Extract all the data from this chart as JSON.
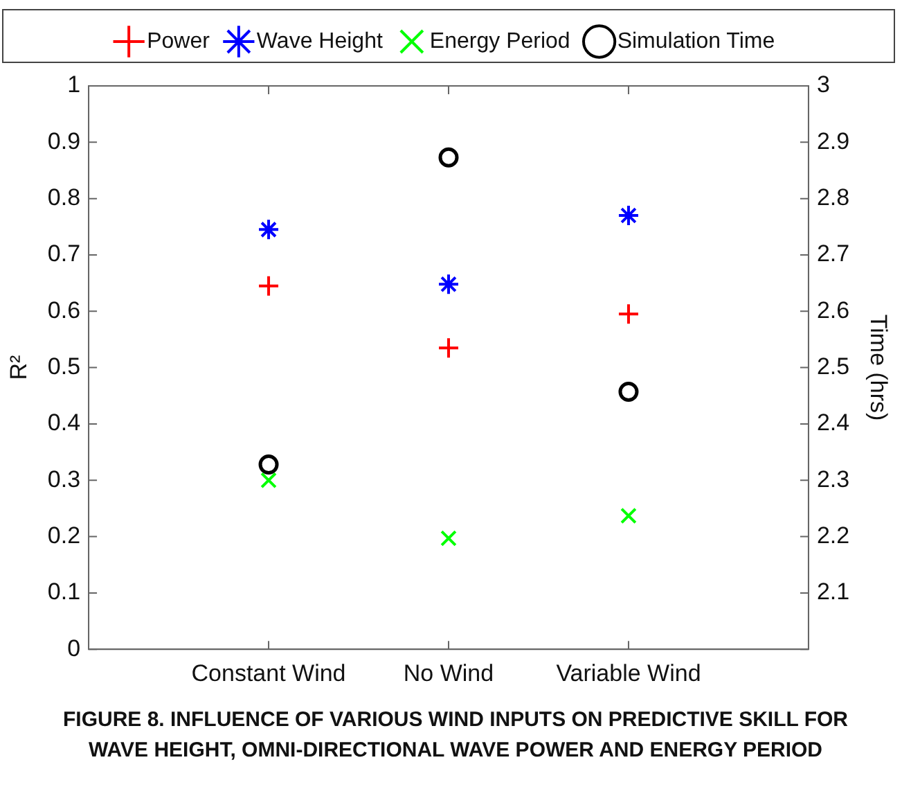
{
  "chart_data": {
    "type": "scatter",
    "categories": [
      "Constant Wind",
      "No Wind",
      "Variable Wind"
    ],
    "ylabel": "R²",
    "y2label": "Time (hrs)",
    "ylim": [
      0,
      1
    ],
    "yticks": [
      0,
      0.1,
      0.2,
      0.3,
      0.4,
      0.5,
      0.6,
      0.7,
      0.8,
      0.9,
      1
    ],
    "y2lim": [
      2,
      3
    ],
    "y2ticks": [
      {
        "value": 2,
        "label": null
      },
      2.1,
      2.2,
      2.3,
      2.4,
      2.5,
      2.6,
      2.7,
      2.8,
      2.9,
      3
    ],
    "grid": false,
    "legend": "top",
    "series": [
      {
        "name": "Power",
        "color": "#ff0000",
        "marker": "cross",
        "values": [
          0.645,
          0.535,
          0.595
        ]
      },
      {
        "name": "Wave Height",
        "color": "#0000ff",
        "values": [
          0.745,
          0.648,
          0.77
        ]
      },
      {
        "name": "Energy Period",
        "color": "#00ff00",
        "marker": "x",
        "values": [
          0.3,
          0.197,
          0.237
        ]
      },
      {
        "name": "Simulation Time",
        "color": "#000000",
        "marker": "circle",
        "axis": "y2",
        "values": [
          2.328,
          2.873,
          2.457
        ]
      }
    ],
    "annotations": [
      "FIGURE 8. INFLUENCE OF VARIOUS WIND INPUTS ON PREDICTIVE SKILL FOR WAVE HEIGHT, OMNI-DIRECTIONAL WAVE POWER AND ENERGY PERIOD"
    ]
  }
}
